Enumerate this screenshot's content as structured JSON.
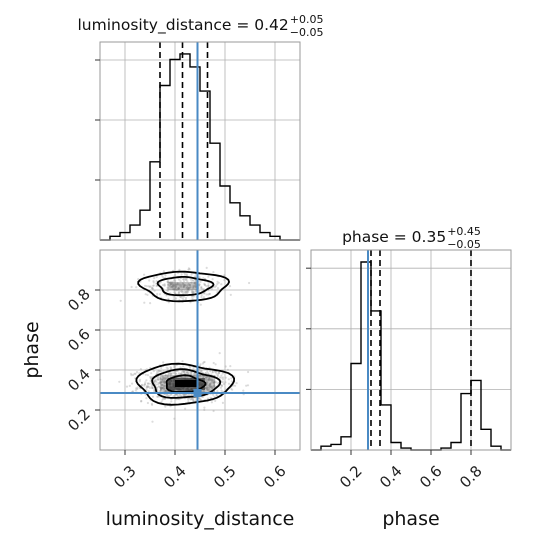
{
  "colors": {
    "truth": "#4a8ac4",
    "hist": "#000000",
    "quantile": "#000000",
    "grid": "#b0b0b0",
    "samples": "#9a9a9a"
  },
  "titles": {
    "luminosity_distance": {
      "main": "luminosity_distance = 0.42",
      "sup": "+0.05",
      "sub": "−0.05"
    },
    "phase": {
      "main": "phase = 0.35",
      "sup": "+0.45",
      "sub": "−0.05"
    }
  },
  "chart_data": [
    {
      "type": "histogram",
      "name": "luminosity_distance marginal",
      "x_param": "luminosity_distance",
      "xlim": [
        0.25,
        0.65
      ],
      "bin_edges": [
        0.25,
        0.27,
        0.29,
        0.31,
        0.33,
        0.35,
        0.37,
        0.39,
        0.41,
        0.43,
        0.45,
        0.47,
        0.49,
        0.51,
        0.53,
        0.55,
        0.57,
        0.59,
        0.61,
        0.63,
        0.65
      ],
      "counts": [
        0,
        2,
        4,
        8,
        16,
        42,
        83,
        97,
        100,
        93,
        80,
        52,
        29,
        20,
        13,
        8,
        4,
        2,
        0,
        0
      ],
      "quantiles": [
        0.37,
        0.415,
        0.465
      ],
      "truth": 0.445,
      "grid": true
    },
    {
      "type": "histogram",
      "name": "phase marginal",
      "x_param": "phase",
      "xlim": [
        0.0,
        1.0
      ],
      "bin_edges": [
        0.0,
        0.05,
        0.1,
        0.15,
        0.2,
        0.25,
        0.3,
        0.35,
        0.4,
        0.45,
        0.5,
        0.55,
        0.6,
        0.65,
        0.7,
        0.75,
        0.8,
        0.85,
        0.9,
        0.95,
        1.0
      ],
      "counts": [
        0,
        2,
        3,
        7,
        46,
        100,
        74,
        24,
        4,
        1,
        0,
        0,
        0,
        1,
        4,
        30,
        37,
        11,
        2,
        0
      ],
      "quantiles": [
        0.3,
        0.345,
        0.8
      ],
      "truth": 0.285,
      "grid": true
    },
    {
      "type": "scatter",
      "name": "2D posterior",
      "x_param": "luminosity_distance",
      "y_param": "phase",
      "xlim": [
        0.25,
        0.65
      ],
      "ylim": [
        0.0,
        1.0
      ],
      "clusters": [
        {
          "cx": 0.42,
          "cy": 0.33,
          "sx": 0.042,
          "sy": 0.045,
          "weight": 0.75
        },
        {
          "cx": 0.42,
          "cy": 0.82,
          "sx": 0.04,
          "sy": 0.035,
          "weight": 0.25
        }
      ],
      "truth": {
        "x": 0.445,
        "y": 0.285
      },
      "grid": true
    }
  ],
  "axes": {
    "x_bottom_left": {
      "label": "luminosity_distance",
      "ticks": [
        "0.3",
        "0.4",
        "0.5",
        "0.6"
      ],
      "tick_values": [
        0.3,
        0.4,
        0.5,
        0.6
      ]
    },
    "y_left": {
      "label": "phase",
      "ticks": [
        "0.2",
        "0.4",
        "0.6",
        "0.8"
      ],
      "tick_values": [
        0.2,
        0.4,
        0.6,
        0.8
      ]
    },
    "x_bottom_right": {
      "label": "phase",
      "ticks": [
        "0.2",
        "0.4",
        "0.6",
        "0.8"
      ],
      "tick_values": [
        0.2,
        0.4,
        0.6,
        0.8
      ]
    }
  }
}
